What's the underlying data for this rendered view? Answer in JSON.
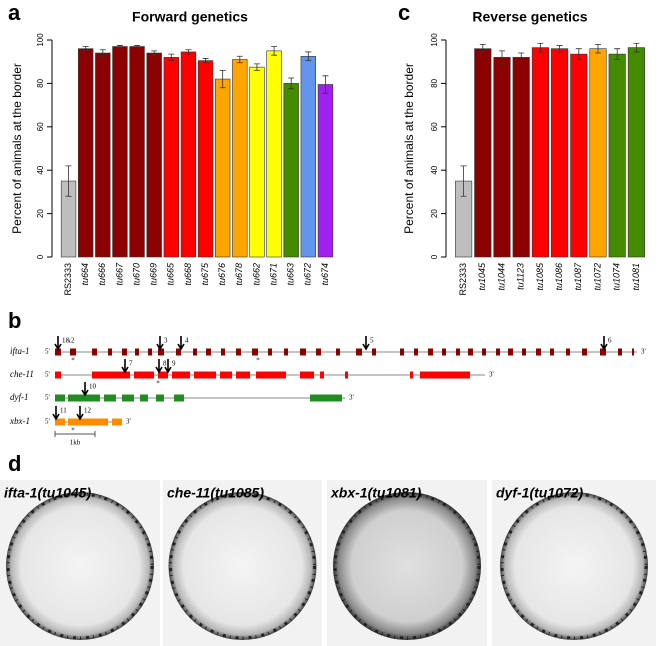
{
  "chart_data": [
    {
      "type": "bar",
      "title": "Forward genetics",
      "y_label": "Percent of animals at the border",
      "categories": [
        "RS2333",
        "tu664",
        "tu666",
        "tu667",
        "tu670",
        "tu669",
        "tu665",
        "tu668",
        "tu675",
        "tu676",
        "tu678",
        "tu662",
        "tu671",
        "tu663",
        "tu672",
        "tu674"
      ],
      "values": [
        35,
        96,
        94,
        97,
        97,
        94,
        92,
        94.5,
        90.5,
        82,
        91,
        87.5,
        95,
        80,
        92.5,
        79.5
      ],
      "errors": [
        7,
        1,
        1.5,
        0.5,
        0.5,
        1,
        1.5,
        1,
        1,
        4,
        1.5,
        1.5,
        2,
        2.5,
        2,
        4
      ],
      "colors": [
        "#bebebe",
        "#8b0000",
        "#8b0000",
        "#8b0000",
        "#8b0000",
        "#8b0000",
        "#ff0000",
        "#ff0000",
        "#ff0000",
        "#ffa500",
        "#ffa500",
        "#ffff00",
        "#ffff00",
        "#458b00",
        "#6495ed",
        "#a020f0"
      ],
      "ylim": [
        0,
        100
      ],
      "yticks": [
        0,
        20,
        40,
        60,
        80,
        100
      ]
    },
    {
      "type": "bar",
      "title": "Reverse genetics",
      "y_label": "Percent of animals at the border",
      "categories": [
        "RS2333",
        "tu1045",
        "tu1044",
        "tu1123",
        "tu1085",
        "tu1086",
        "tu1087",
        "tu1072",
        "tu1074",
        "tu1081"
      ],
      "values": [
        35,
        96,
        92,
        92,
        96.5,
        96,
        93.5,
        96,
        93.5,
        96.5
      ],
      "errors": [
        7,
        2,
        3,
        2,
        2,
        1.5,
        2.5,
        2,
        2.5,
        2
      ],
      "colors": [
        "#bebebe",
        "#8b0000",
        "#8b0000",
        "#8b0000",
        "#ff0000",
        "#ff0000",
        "#ff0000",
        "#ffa500",
        "#458b00",
        "#458b00"
      ],
      "ylim": [
        0,
        100
      ],
      "yticks": [
        0,
        20,
        40,
        60,
        80,
        100
      ]
    }
  ],
  "panel_letters": [
    "a",
    "c",
    "b",
    "d"
  ],
  "genes": {
    "five_prime": "5'",
    "three_prime": "3'",
    "asterisk": "*",
    "scale": "1kb",
    "names": [
      "ifta-1",
      "che-11",
      "dyf-1",
      "xbx-1"
    ],
    "arrows": [
      "1&2",
      "3",
      "4",
      "5",
      "6",
      "7",
      "8",
      "9",
      "10",
      "11",
      "12"
    ]
  },
  "images": [
    "ifta-1(tu1045)",
    "che-11(tu1085)",
    "xbx-1(tu1081)",
    "dyf-1(tu1072)"
  ]
}
